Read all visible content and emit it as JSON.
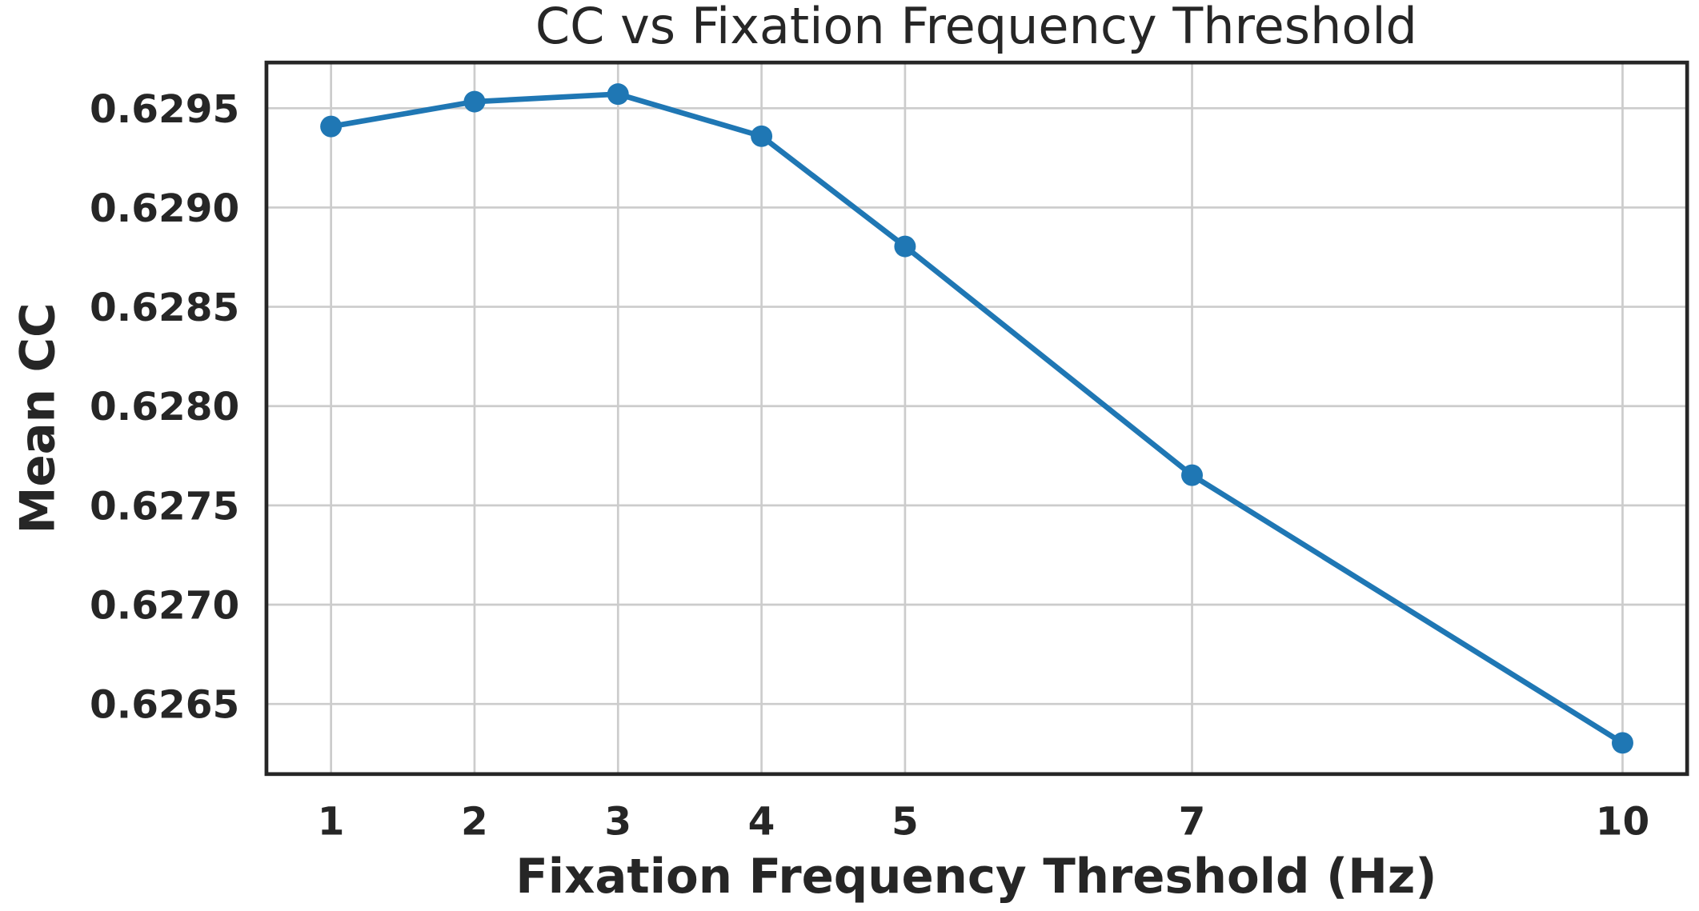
{
  "chart_data": {
    "type": "line",
    "title": "CC vs Fixation Frequency Threshold",
    "xlabel": "Fixation Frequency Threshold (Hz)",
    "ylabel": "Mean CC",
    "x": [
      1,
      2,
      3,
      4,
      5,
      7,
      10
    ],
    "series": [
      {
        "name": "Mean CC",
        "color": "#1f77b4",
        "values": [
          0.629408,
          0.629533,
          0.629571,
          0.629359,
          0.628804,
          0.627652,
          0.626304
        ]
      }
    ],
    "xticks": [
      1,
      2,
      3,
      4,
      5,
      7,
      10
    ],
    "xtick_labels": [
      "1",
      "2",
      "3",
      "4",
      "5",
      "7",
      "10"
    ],
    "yticks": [
      0.6265,
      0.627,
      0.6275,
      0.628,
      0.6285,
      0.629,
      0.6295
    ],
    "ytick_labels": [
      "0.6265",
      "0.6270",
      "0.6275",
      "0.6280",
      "0.6285",
      "0.6290",
      "0.6295"
    ],
    "xlim": [
      0.55,
      10.45
    ],
    "ylim": [
      0.626147,
      0.62973
    ],
    "grid": true,
    "legend": "none"
  }
}
